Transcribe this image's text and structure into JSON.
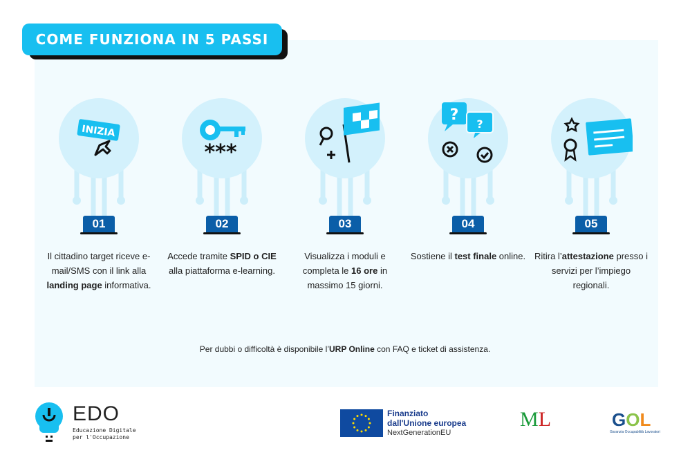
{
  "header": {
    "title": "COME FUNZIONA IN 5 PASSI"
  },
  "steps": [
    {
      "number": "01",
      "icon": "start-button-cursor",
      "icon_label": "INIZIA",
      "parts": [
        [
          "Il cittadino target riceve e-mail/SMS con il link alla ",
          false
        ],
        [
          "landing page",
          true
        ],
        [
          " informativa.",
          false
        ]
      ]
    },
    {
      "number": "02",
      "icon": "key-password",
      "icon_label": "***",
      "parts": [
        [
          "Accede tramite ",
          false
        ],
        [
          "SPID o CIE",
          true
        ],
        [
          " alla piattaforma e-learning.",
          false
        ]
      ]
    },
    {
      "number": "03",
      "icon": "search-flag",
      "parts": [
        [
          "Visualizza i moduli e completa le ",
          false
        ],
        [
          "16 ore",
          true
        ],
        [
          " in massimo 15 giorni.",
          false
        ]
      ]
    },
    {
      "number": "04",
      "icon": "question-test",
      "parts": [
        [
          "Sostiene il ",
          false
        ],
        [
          "test finale",
          true
        ],
        [
          " online.",
          false
        ]
      ]
    },
    {
      "number": "05",
      "icon": "certificate",
      "parts": [
        [
          "Ritira l’",
          false
        ],
        [
          "attestazione",
          true
        ],
        [
          " presso i servizi per l’impiego regionali.",
          false
        ]
      ]
    }
  ],
  "note": {
    "pre": "Per dubbi o difficoltà è disponibile l’",
    "bold": "URP Online",
    "post": " con FAQ e ticket di assistenza."
  },
  "footer": {
    "edo": {
      "name": "EDO",
      "sub1": "Educazione Digitale",
      "sub2": "per l'Occupazione"
    },
    "eu": {
      "line1": "Finanziato",
      "line2": "dall'Unione europea",
      "line3": "NextGenerationEU"
    },
    "ministry": {
      "logo": "ML"
    },
    "gol": {
      "logo": "GOL",
      "sub": "Garanzia Occupabilità Lavoratori"
    }
  },
  "colors": {
    "accent": "#18bff0",
    "badge": "#0b5ea8",
    "panel": "#f2fbfe",
    "circle": "#d3f1fc"
  }
}
